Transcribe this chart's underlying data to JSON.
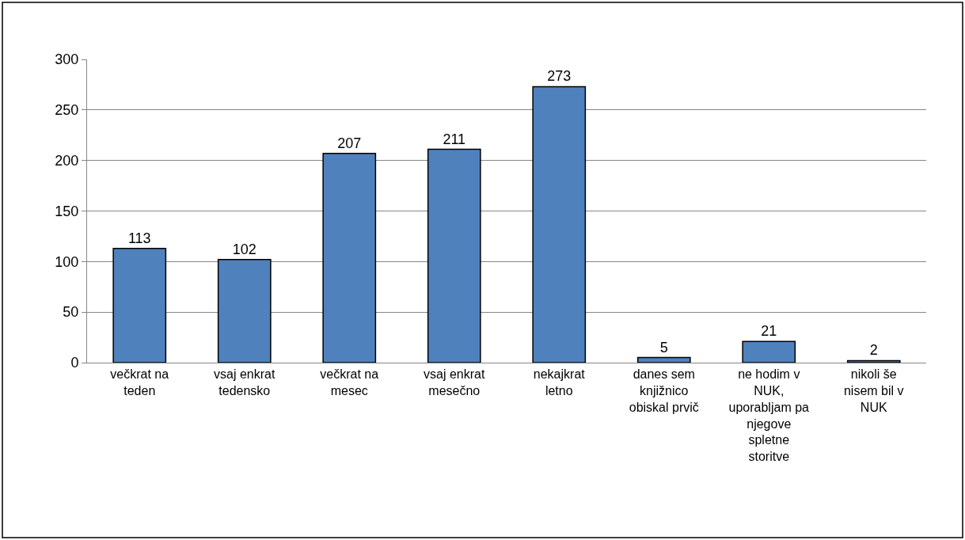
{
  "chart_data": {
    "type": "bar",
    "categories": [
      "večkrat na teden",
      "vsaj enkrat tedensko",
      "večkrat na mesec",
      "vsaj enkrat mesečno",
      "nekajkrat letno",
      "danes sem knjižnico obiskal prvič",
      "ne hodim v NUK, uporabljam pa njegove spletne storitve",
      "nikoli še nisem bil v NUK"
    ],
    "values": [
      113,
      102,
      207,
      211,
      273,
      5,
      21,
      2
    ],
    "color": "#4f81bd",
    "ylim": [
      0,
      300
    ],
    "yticks": [
      0,
      50,
      100,
      150,
      200,
      250,
      300
    ],
    "grid": "y",
    "data_labels": true,
    "legend": false
  }
}
